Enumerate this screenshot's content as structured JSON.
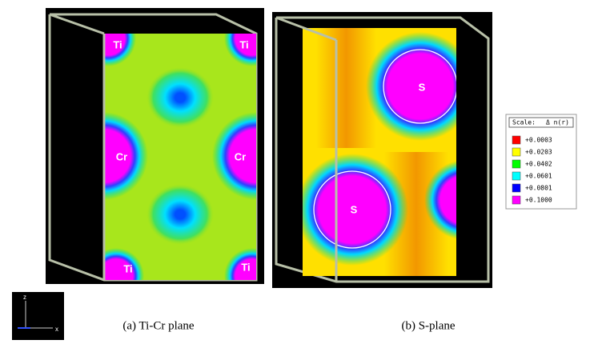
{
  "panels": [
    {
      "caption": "(a) Ti-Cr plane",
      "atom_labels": [
        "Ti",
        "Ti",
        "Cr",
        "Cr",
        "Ti",
        "Ti"
      ]
    },
    {
      "caption": "(b) S-plane",
      "atom_labels": [
        "S",
        "S"
      ]
    }
  ],
  "legend": {
    "title": "Scale:",
    "quantity": "Δ n(r)",
    "items": [
      {
        "label": "+0.0003",
        "color": "#ff0000"
      },
      {
        "label": "+0.0203",
        "color": "#ffff00"
      },
      {
        "label": "+0.0402",
        "color": "#00ff00"
      },
      {
        "label": "+0.0601",
        "color": "#00ffff"
      },
      {
        "label": "+0.0801",
        "color": "#0000ff"
      },
      {
        "label": "+0.1000",
        "color": "#ff00ff"
      }
    ]
  },
  "axes_triad": {
    "labels": [
      "z",
      "x"
    ]
  }
}
